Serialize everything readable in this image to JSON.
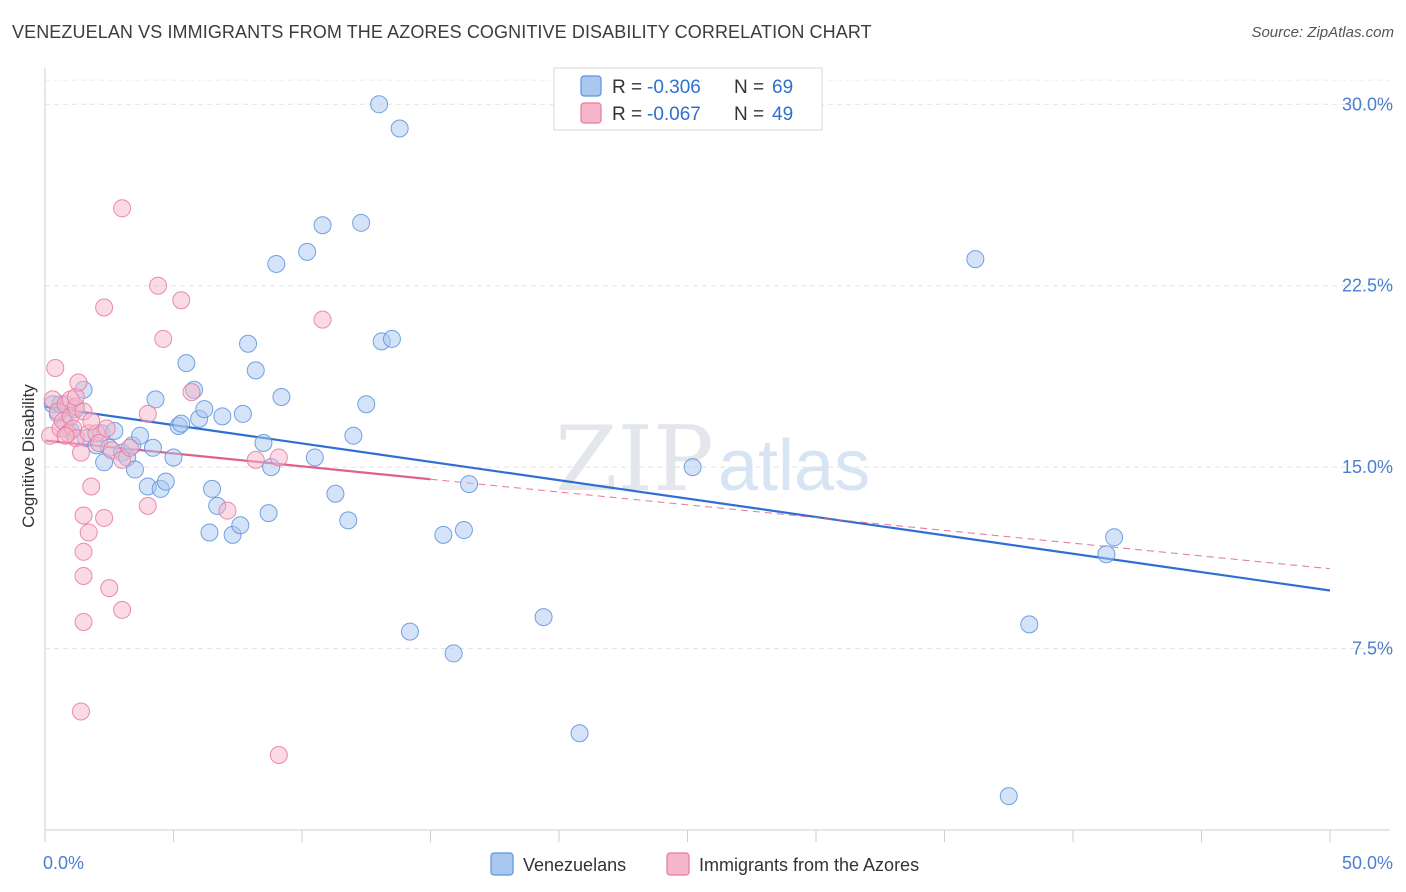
{
  "header": {
    "title": "VENEZUELAN VS IMMIGRANTS FROM THE AZORES COGNITIVE DISABILITY CORRELATION CHART",
    "source": "Source: ZipAtlas.com"
  },
  "watermark": {
    "zip": "ZIP",
    "atlas": "atlas"
  },
  "legend_box": {
    "rows": [
      {
        "r_label": "R = ",
        "r_value": "-0.306",
        "n_label": "N = ",
        "n_value": "69",
        "color": "#a9c8ef"
      },
      {
        "r_label": "R = ",
        "r_value": "-0.067",
        "n_label": "N = ",
        "n_value": "49",
        "color": "#f5b6ca"
      }
    ]
  },
  "bottom_legend": {
    "items": [
      {
        "label": "Venezuelans",
        "color": "#a9c8ef"
      },
      {
        "label": "Immigrants from the Azores",
        "color": "#f5b6ca"
      }
    ]
  },
  "chart_data": {
    "type": "scatter",
    "title": "VENEZUELAN VS IMMIGRANTS FROM THE AZORES COGNITIVE DISABILITY CORRELATION CHART",
    "xlabel": "",
    "ylabel": "Cognitive Disability",
    "xlim": [
      0,
      50
    ],
    "ylim": [
      0,
      31.5
    ],
    "x_tick_labels": [
      "0.0%",
      "50.0%"
    ],
    "y_ticks": [
      7.5,
      15.0,
      22.5,
      30.0
    ],
    "y_tick_labels": [
      "7.5%",
      "15.0%",
      "22.5%",
      "30.0%"
    ],
    "grid": true,
    "legend_position": "top-center",
    "series": [
      {
        "name": "Venezuelans",
        "color": "#5b93dd",
        "fill": "#a9c8ef",
        "trend": {
          "x": [
            0,
            50
          ],
          "y": [
            17.5,
            9.9
          ],
          "color": "#2f6fcf",
          "style": "solid"
        },
        "points": [
          [
            0.3,
            17.6
          ],
          [
            0.5,
            17.2
          ],
          [
            0.6,
            17.6
          ],
          [
            0.8,
            16.8
          ],
          [
            1.0,
            16.5
          ],
          [
            1.2,
            17.4
          ],
          [
            1.5,
            18.2
          ],
          [
            1.6,
            16.2
          ],
          [
            2.0,
            15.9
          ],
          [
            2.2,
            16.4
          ],
          [
            2.3,
            15.2
          ],
          [
            2.5,
            15.8
          ],
          [
            2.7,
            16.5
          ],
          [
            3.0,
            15.6
          ],
          [
            3.2,
            15.4
          ],
          [
            3.4,
            15.9
          ],
          [
            3.5,
            14.9
          ],
          [
            3.7,
            16.3
          ],
          [
            4.0,
            14.2
          ],
          [
            4.2,
            15.8
          ],
          [
            4.3,
            17.8
          ],
          [
            4.5,
            14.1
          ],
          [
            4.7,
            14.4
          ],
          [
            5.0,
            15.4
          ],
          [
            5.2,
            16.7
          ],
          [
            5.3,
            16.8
          ],
          [
            5.5,
            19.3
          ],
          [
            5.8,
            18.2
          ],
          [
            6.0,
            17.0
          ],
          [
            6.2,
            17.4
          ],
          [
            6.4,
            12.3
          ],
          [
            6.5,
            14.1
          ],
          [
            6.7,
            13.4
          ],
          [
            6.9,
            17.1
          ],
          [
            7.3,
            12.2
          ],
          [
            7.6,
            12.6
          ],
          [
            7.7,
            17.2
          ],
          [
            7.9,
            20.1
          ],
          [
            8.2,
            19.0
          ],
          [
            8.5,
            16.0
          ],
          [
            8.8,
            15.0
          ],
          [
            8.7,
            13.1
          ],
          [
            9.0,
            23.4
          ],
          [
            9.2,
            17.9
          ],
          [
            10.2,
            23.9
          ],
          [
            10.5,
            15.4
          ],
          [
            10.8,
            25.0
          ],
          [
            11.3,
            13.9
          ],
          [
            11.8,
            12.8
          ],
          [
            12.0,
            16.3
          ],
          [
            12.3,
            25.1
          ],
          [
            12.5,
            17.6
          ],
          [
            13.0,
            30.0
          ],
          [
            13.1,
            20.2
          ],
          [
            13.5,
            20.3
          ],
          [
            13.8,
            29.0
          ],
          [
            14.2,
            8.2
          ],
          [
            15.5,
            12.2
          ],
          [
            15.9,
            7.3
          ],
          [
            16.3,
            12.4
          ],
          [
            16.5,
            14.3
          ],
          [
            19.4,
            8.8
          ],
          [
            20.8,
            4.0
          ],
          [
            25.2,
            15.0
          ],
          [
            36.2,
            23.6
          ],
          [
            37.5,
            1.4
          ],
          [
            38.3,
            8.5
          ],
          [
            41.3,
            11.4
          ],
          [
            41.6,
            12.1
          ]
        ]
      },
      {
        "name": "Immigrants from the Azores",
        "color": "#e6799d",
        "fill": "#f5b6ca",
        "trend": {
          "x": [
            0,
            15
          ],
          "y": [
            16.1,
            14.5
          ],
          "color": "#e0608c",
          "style": "solid",
          "dashed_extension": {
            "x": [
              15,
              50
            ],
            "y": [
              14.5,
              10.8
            ]
          }
        },
        "points": [
          [
            0.2,
            16.3
          ],
          [
            0.3,
            17.8
          ],
          [
            0.4,
            19.1
          ],
          [
            0.5,
            17.3
          ],
          [
            0.6,
            16.6
          ],
          [
            0.7,
            16.9
          ],
          [
            0.8,
            17.6
          ],
          [
            0.9,
            16.4
          ],
          [
            1.0,
            17.8
          ],
          [
            1.0,
            17.1
          ],
          [
            1.1,
            16.6
          ],
          [
            1.2,
            17.5
          ],
          [
            1.2,
            17.9
          ],
          [
            1.2,
            16.2
          ],
          [
            1.3,
            18.5
          ],
          [
            1.5,
            17.3
          ],
          [
            1.4,
            15.6
          ],
          [
            1.7,
            16.4
          ],
          [
            2.0,
            16.4
          ],
          [
            1.5,
            13.0
          ],
          [
            1.7,
            12.3
          ],
          [
            1.8,
            14.2
          ],
          [
            1.5,
            11.5
          ],
          [
            1.5,
            10.5
          ],
          [
            2.1,
            16.0
          ],
          [
            1.8,
            16.9
          ],
          [
            2.3,
            21.6
          ],
          [
            2.4,
            16.6
          ],
          [
            2.3,
            12.9
          ],
          [
            2.5,
            10.0
          ],
          [
            2.6,
            15.7
          ],
          [
            3.0,
            15.3
          ],
          [
            3.0,
            9.1
          ],
          [
            3.3,
            15.8
          ],
          [
            4.0,
            13.4
          ],
          [
            4.4,
            22.5
          ],
          [
            4.6,
            20.3
          ],
          [
            5.3,
            21.9
          ],
          [
            5.7,
            18.1
          ],
          [
            1.5,
            8.6
          ],
          [
            1.4,
            4.9
          ],
          [
            4.0,
            17.2
          ],
          [
            7.1,
            13.2
          ],
          [
            8.2,
            15.3
          ],
          [
            9.1,
            15.4
          ],
          [
            10.8,
            21.1
          ],
          [
            9.1,
            3.1
          ],
          [
            3.0,
            25.7
          ],
          [
            0.8,
            16.3
          ]
        ]
      }
    ]
  }
}
